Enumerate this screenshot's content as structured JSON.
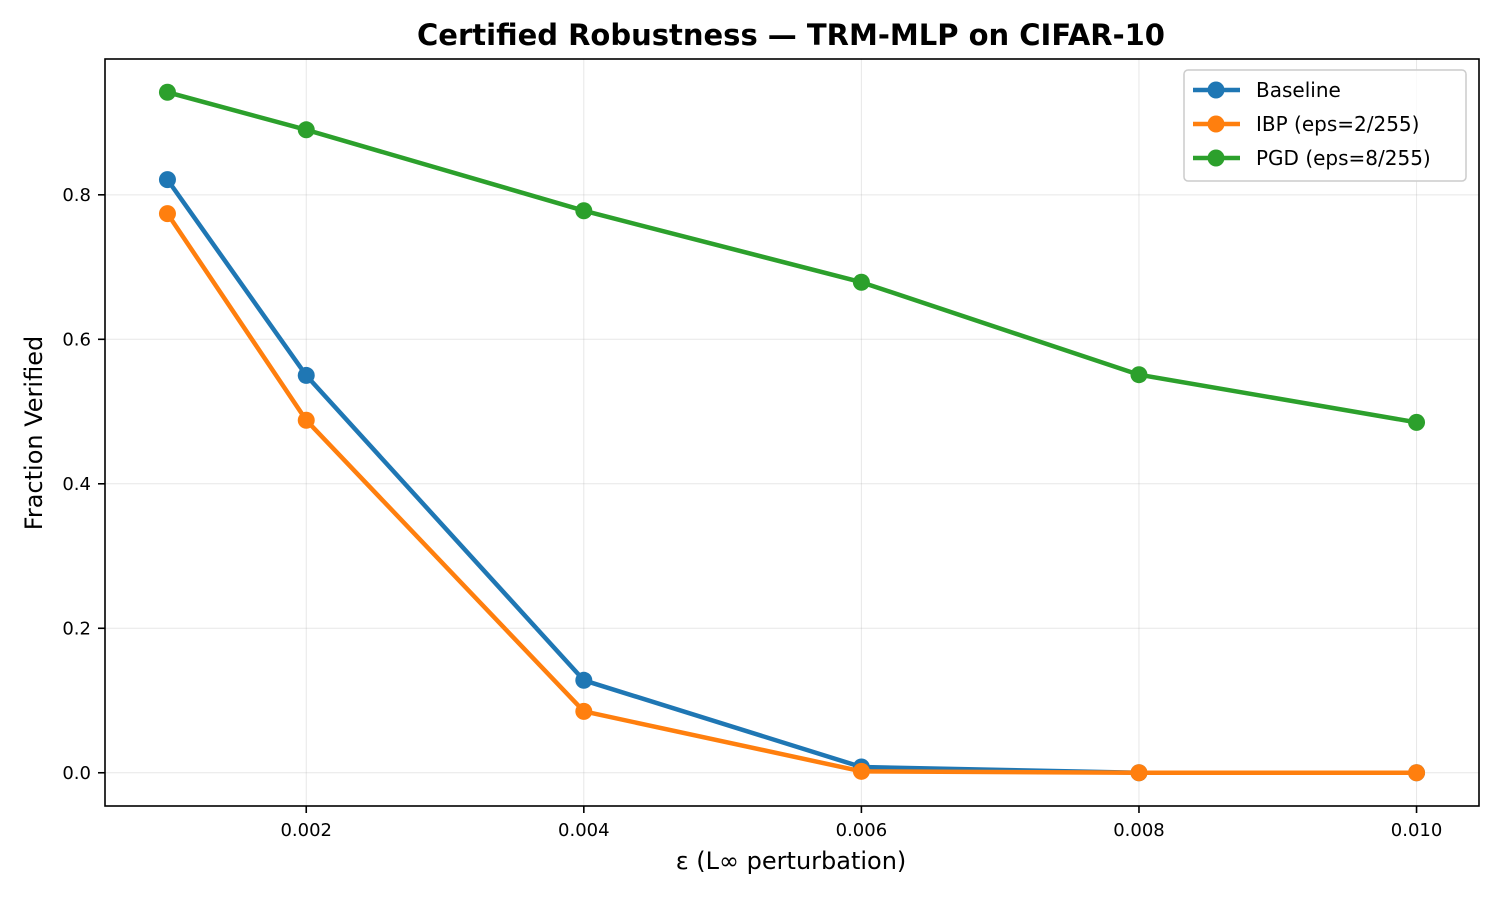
{
  "chart_data": {
    "type": "line",
    "title": "Certified Robustness — TRM-MLP on CIFAR-10",
    "xlabel": "ε (L∞ perturbation)",
    "ylabel": "Fraction Verified",
    "xlim": [
      0.00055,
      0.01045
    ],
    "ylim": [
      -0.046,
      0.988
    ],
    "x_ticks": [
      0.002,
      0.004,
      0.006,
      0.008,
      0.01
    ],
    "x_tick_labels": [
      "0.002",
      "0.004",
      "0.006",
      "0.008",
      "0.010"
    ],
    "y_ticks": [
      0.0,
      0.2,
      0.4,
      0.6,
      0.8
    ],
    "y_tick_labels": [
      "0.0",
      "0.2",
      "0.4",
      "0.6",
      "0.8"
    ],
    "grid": true,
    "legend_position": "top-right",
    "x": [
      0.001,
      0.002,
      0.004,
      0.006,
      0.008,
      0.01
    ],
    "series": [
      {
        "name": "Baseline",
        "color": "#1f77b4",
        "values": [
          0.821,
          0.55,
          0.128,
          0.008,
          0.0,
          0.0
        ]
      },
      {
        "name": "IBP (eps=2/255)",
        "color": "#ff7f0e",
        "values": [
          0.774,
          0.488,
          0.085,
          0.002,
          0.0,
          0.0
        ]
      },
      {
        "name": "PGD (eps=8/255)",
        "color": "#2ca02c",
        "values": [
          0.942,
          0.89,
          0.778,
          0.679,
          0.551,
          0.485
        ]
      }
    ]
  }
}
